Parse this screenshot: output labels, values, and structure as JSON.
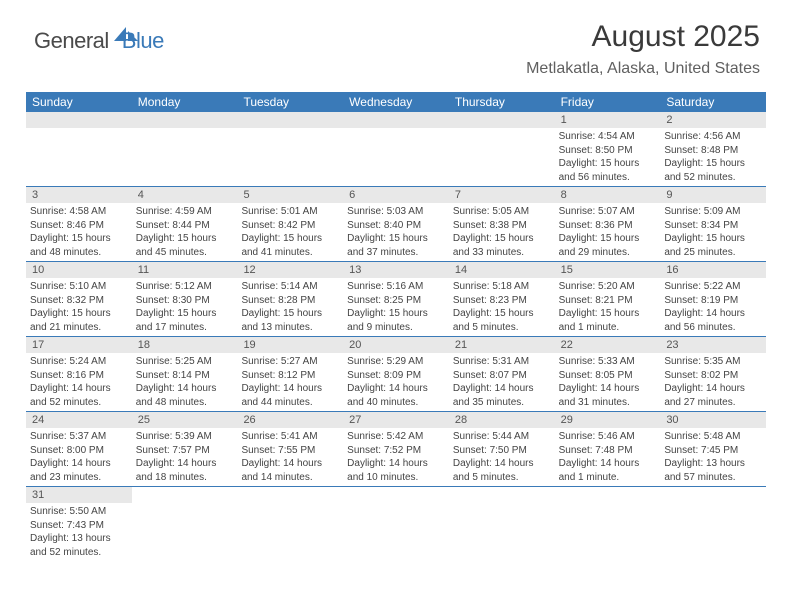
{
  "brand": {
    "part1": "General",
    "part2": "Blue"
  },
  "title": "August 2025",
  "location": "Metlakatla, Alaska, United States",
  "colors": {
    "header_bg": "#3a7ab8",
    "header_text": "#ffffff",
    "daynum_bg": "#e8e8e8",
    "border": "#3a7ab8",
    "text": "#444444",
    "title_color": "#3a3a3a",
    "subtitle_color": "#606060"
  },
  "weekdays": [
    "Sunday",
    "Monday",
    "Tuesday",
    "Wednesday",
    "Thursday",
    "Friday",
    "Saturday"
  ],
  "weeks": [
    [
      {
        "n": "",
        "sr": "",
        "ss": "",
        "dl": ""
      },
      {
        "n": "",
        "sr": "",
        "ss": "",
        "dl": ""
      },
      {
        "n": "",
        "sr": "",
        "ss": "",
        "dl": ""
      },
      {
        "n": "",
        "sr": "",
        "ss": "",
        "dl": ""
      },
      {
        "n": "",
        "sr": "",
        "ss": "",
        "dl": ""
      },
      {
        "n": "1",
        "sr": "Sunrise: 4:54 AM",
        "ss": "Sunset: 8:50 PM",
        "dl": "Daylight: 15 hours and 56 minutes."
      },
      {
        "n": "2",
        "sr": "Sunrise: 4:56 AM",
        "ss": "Sunset: 8:48 PM",
        "dl": "Daylight: 15 hours and 52 minutes."
      }
    ],
    [
      {
        "n": "3",
        "sr": "Sunrise: 4:58 AM",
        "ss": "Sunset: 8:46 PM",
        "dl": "Daylight: 15 hours and 48 minutes."
      },
      {
        "n": "4",
        "sr": "Sunrise: 4:59 AM",
        "ss": "Sunset: 8:44 PM",
        "dl": "Daylight: 15 hours and 45 minutes."
      },
      {
        "n": "5",
        "sr": "Sunrise: 5:01 AM",
        "ss": "Sunset: 8:42 PM",
        "dl": "Daylight: 15 hours and 41 minutes."
      },
      {
        "n": "6",
        "sr": "Sunrise: 5:03 AM",
        "ss": "Sunset: 8:40 PM",
        "dl": "Daylight: 15 hours and 37 minutes."
      },
      {
        "n": "7",
        "sr": "Sunrise: 5:05 AM",
        "ss": "Sunset: 8:38 PM",
        "dl": "Daylight: 15 hours and 33 minutes."
      },
      {
        "n": "8",
        "sr": "Sunrise: 5:07 AM",
        "ss": "Sunset: 8:36 PM",
        "dl": "Daylight: 15 hours and 29 minutes."
      },
      {
        "n": "9",
        "sr": "Sunrise: 5:09 AM",
        "ss": "Sunset: 8:34 PM",
        "dl": "Daylight: 15 hours and 25 minutes."
      }
    ],
    [
      {
        "n": "10",
        "sr": "Sunrise: 5:10 AM",
        "ss": "Sunset: 8:32 PM",
        "dl": "Daylight: 15 hours and 21 minutes."
      },
      {
        "n": "11",
        "sr": "Sunrise: 5:12 AM",
        "ss": "Sunset: 8:30 PM",
        "dl": "Daylight: 15 hours and 17 minutes."
      },
      {
        "n": "12",
        "sr": "Sunrise: 5:14 AM",
        "ss": "Sunset: 8:28 PM",
        "dl": "Daylight: 15 hours and 13 minutes."
      },
      {
        "n": "13",
        "sr": "Sunrise: 5:16 AM",
        "ss": "Sunset: 8:25 PM",
        "dl": "Daylight: 15 hours and 9 minutes."
      },
      {
        "n": "14",
        "sr": "Sunrise: 5:18 AM",
        "ss": "Sunset: 8:23 PM",
        "dl": "Daylight: 15 hours and 5 minutes."
      },
      {
        "n": "15",
        "sr": "Sunrise: 5:20 AM",
        "ss": "Sunset: 8:21 PM",
        "dl": "Daylight: 15 hours and 1 minute."
      },
      {
        "n": "16",
        "sr": "Sunrise: 5:22 AM",
        "ss": "Sunset: 8:19 PM",
        "dl": "Daylight: 14 hours and 56 minutes."
      }
    ],
    [
      {
        "n": "17",
        "sr": "Sunrise: 5:24 AM",
        "ss": "Sunset: 8:16 PM",
        "dl": "Daylight: 14 hours and 52 minutes."
      },
      {
        "n": "18",
        "sr": "Sunrise: 5:25 AM",
        "ss": "Sunset: 8:14 PM",
        "dl": "Daylight: 14 hours and 48 minutes."
      },
      {
        "n": "19",
        "sr": "Sunrise: 5:27 AM",
        "ss": "Sunset: 8:12 PM",
        "dl": "Daylight: 14 hours and 44 minutes."
      },
      {
        "n": "20",
        "sr": "Sunrise: 5:29 AM",
        "ss": "Sunset: 8:09 PM",
        "dl": "Daylight: 14 hours and 40 minutes."
      },
      {
        "n": "21",
        "sr": "Sunrise: 5:31 AM",
        "ss": "Sunset: 8:07 PM",
        "dl": "Daylight: 14 hours and 35 minutes."
      },
      {
        "n": "22",
        "sr": "Sunrise: 5:33 AM",
        "ss": "Sunset: 8:05 PM",
        "dl": "Daylight: 14 hours and 31 minutes."
      },
      {
        "n": "23",
        "sr": "Sunrise: 5:35 AM",
        "ss": "Sunset: 8:02 PM",
        "dl": "Daylight: 14 hours and 27 minutes."
      }
    ],
    [
      {
        "n": "24",
        "sr": "Sunrise: 5:37 AM",
        "ss": "Sunset: 8:00 PM",
        "dl": "Daylight: 14 hours and 23 minutes."
      },
      {
        "n": "25",
        "sr": "Sunrise: 5:39 AM",
        "ss": "Sunset: 7:57 PM",
        "dl": "Daylight: 14 hours and 18 minutes."
      },
      {
        "n": "26",
        "sr": "Sunrise: 5:41 AM",
        "ss": "Sunset: 7:55 PM",
        "dl": "Daylight: 14 hours and 14 minutes."
      },
      {
        "n": "27",
        "sr": "Sunrise: 5:42 AM",
        "ss": "Sunset: 7:52 PM",
        "dl": "Daylight: 14 hours and 10 minutes."
      },
      {
        "n": "28",
        "sr": "Sunrise: 5:44 AM",
        "ss": "Sunset: 7:50 PM",
        "dl": "Daylight: 14 hours and 5 minutes."
      },
      {
        "n": "29",
        "sr": "Sunrise: 5:46 AM",
        "ss": "Sunset: 7:48 PM",
        "dl": "Daylight: 14 hours and 1 minute."
      },
      {
        "n": "30",
        "sr": "Sunrise: 5:48 AM",
        "ss": "Sunset: 7:45 PM",
        "dl": "Daylight: 13 hours and 57 minutes."
      }
    ],
    [
      {
        "n": "31",
        "sr": "Sunrise: 5:50 AM",
        "ss": "Sunset: 7:43 PM",
        "dl": "Daylight: 13 hours and 52 minutes."
      },
      {
        "n": "",
        "sr": "",
        "ss": "",
        "dl": ""
      },
      {
        "n": "",
        "sr": "",
        "ss": "",
        "dl": ""
      },
      {
        "n": "",
        "sr": "",
        "ss": "",
        "dl": ""
      },
      {
        "n": "",
        "sr": "",
        "ss": "",
        "dl": ""
      },
      {
        "n": "",
        "sr": "",
        "ss": "",
        "dl": ""
      },
      {
        "n": "",
        "sr": "",
        "ss": "",
        "dl": ""
      }
    ]
  ]
}
